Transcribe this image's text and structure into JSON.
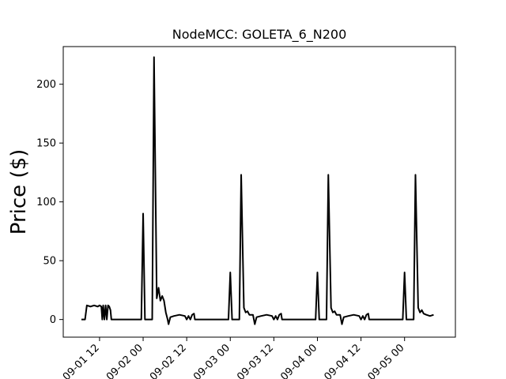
{
  "chart_data": {
    "type": "line",
    "title": "NodeMCC: GOLETA_6_N200",
    "xlabel": "",
    "ylabel": "Price ($)",
    "xlim": [
      "2024-09-01T02:00",
      "2024-09-05T14:00"
    ],
    "ylim": [
      -15,
      232
    ],
    "grid": false,
    "yticks": [
      0,
      50,
      100,
      150,
      200
    ],
    "xticks": [
      {
        "t": "2024-09-01T12:00",
        "label": "09-01 12"
      },
      {
        "t": "2024-09-02T00:00",
        "label": "09-02 00"
      },
      {
        "t": "2024-09-02T12:00",
        "label": "09-02 12"
      },
      {
        "t": "2024-09-03T00:00",
        "label": "09-03 00"
      },
      {
        "t": "2024-09-03T12:00",
        "label": "09-03 12"
      },
      {
        "t": "2024-09-04T00:00",
        "label": "09-04 00"
      },
      {
        "t": "2024-09-04T12:00",
        "label": "09-04 12"
      },
      {
        "t": "2024-09-05T00:00",
        "label": "09-05 00"
      }
    ],
    "series": [
      {
        "name": "",
        "color": "#000000",
        "points": [
          [
            "2024-09-01T07:00",
            0
          ],
          [
            "2024-09-01T08:00",
            0
          ],
          [
            "2024-09-01T08:30",
            12
          ],
          [
            "2024-09-01T09:30",
            11
          ],
          [
            "2024-09-01T10:30",
            12
          ],
          [
            "2024-09-01T11:30",
            11
          ],
          [
            "2024-09-01T12:00",
            12
          ],
          [
            "2024-09-01T12:30",
            11
          ],
          [
            "2024-09-01T12:45",
            0
          ],
          [
            "2024-09-01T13:00",
            12
          ],
          [
            "2024-09-01T13:20",
            0
          ],
          [
            "2024-09-01T13:40",
            12
          ],
          [
            "2024-09-01T14:00",
            0
          ],
          [
            "2024-09-01T14:20",
            12
          ],
          [
            "2024-09-01T14:40",
            11
          ],
          [
            "2024-09-01T15:00",
            8
          ],
          [
            "2024-09-01T15:15",
            0
          ],
          [
            "2024-09-01T23:30",
            0
          ],
          [
            "2024-09-02T00:00",
            90
          ],
          [
            "2024-09-02T00:30",
            0
          ],
          [
            "2024-09-02T02:30",
            0
          ],
          [
            "2024-09-02T03:00",
            223
          ],
          [
            "2024-09-02T03:45",
            18
          ],
          [
            "2024-09-02T04:15",
            27
          ],
          [
            "2024-09-02T04:45",
            16
          ],
          [
            "2024-09-02T05:15",
            20
          ],
          [
            "2024-09-02T05:45",
            16
          ],
          [
            "2024-09-02T06:15",
            6
          ],
          [
            "2024-09-02T06:45",
            0
          ],
          [
            "2024-09-02T07:00",
            -4
          ],
          [
            "2024-09-02T07:30",
            2
          ],
          [
            "2024-09-02T08:30",
            3
          ],
          [
            "2024-09-02T10:00",
            4
          ],
          [
            "2024-09-02T11:30",
            3
          ],
          [
            "2024-09-02T12:00",
            0
          ],
          [
            "2024-09-02T12:30",
            3
          ],
          [
            "2024-09-02T13:00",
            0
          ],
          [
            "2024-09-02T13:30",
            4
          ],
          [
            "2024-09-02T14:00",
            5
          ],
          [
            "2024-09-02T14:15",
            0
          ],
          [
            "2024-09-02T23:30",
            0
          ],
          [
            "2024-09-03T00:00",
            40
          ],
          [
            "2024-09-03T00:30",
            0
          ],
          [
            "2024-09-03T02:30",
            0
          ],
          [
            "2024-09-03T03:00",
            123
          ],
          [
            "2024-09-03T03:45",
            10
          ],
          [
            "2024-09-03T04:15",
            6
          ],
          [
            "2024-09-03T04:45",
            7
          ],
          [
            "2024-09-03T05:15",
            4
          ],
          [
            "2024-09-03T06:15",
            4
          ],
          [
            "2024-09-03T06:45",
            -4
          ],
          [
            "2024-09-03T07:15",
            2
          ],
          [
            "2024-09-03T08:30",
            3
          ],
          [
            "2024-09-03T10:00",
            4
          ],
          [
            "2024-09-03T11:30",
            3
          ],
          [
            "2024-09-03T12:00",
            0
          ],
          [
            "2024-09-03T12:30",
            3
          ],
          [
            "2024-09-03T13:00",
            0
          ],
          [
            "2024-09-03T13:30",
            4
          ],
          [
            "2024-09-03T14:00",
            5
          ],
          [
            "2024-09-03T14:15",
            0
          ],
          [
            "2024-09-03T23:30",
            0
          ],
          [
            "2024-09-04T00:00",
            40
          ],
          [
            "2024-09-04T00:30",
            0
          ],
          [
            "2024-09-04T02:30",
            0
          ],
          [
            "2024-09-04T03:00",
            123
          ],
          [
            "2024-09-04T03:45",
            10
          ],
          [
            "2024-09-04T04:15",
            6
          ],
          [
            "2024-09-04T04:45",
            7
          ],
          [
            "2024-09-04T05:15",
            4
          ],
          [
            "2024-09-04T06:15",
            4
          ],
          [
            "2024-09-04T06:45",
            -4
          ],
          [
            "2024-09-04T07:15",
            2
          ],
          [
            "2024-09-04T08:30",
            3
          ],
          [
            "2024-09-04T10:00",
            4
          ],
          [
            "2024-09-04T11:30",
            3
          ],
          [
            "2024-09-04T12:00",
            0
          ],
          [
            "2024-09-04T12:30",
            3
          ],
          [
            "2024-09-04T13:00",
            0
          ],
          [
            "2024-09-04T13:30",
            4
          ],
          [
            "2024-09-04T14:00",
            5
          ],
          [
            "2024-09-04T14:15",
            0
          ],
          [
            "2024-09-04T23:30",
            0
          ],
          [
            "2024-09-05T00:00",
            40
          ],
          [
            "2024-09-05T00:30",
            0
          ],
          [
            "2024-09-05T02:30",
            0
          ],
          [
            "2024-09-05T03:00",
            123
          ],
          [
            "2024-09-05T03:45",
            10
          ],
          [
            "2024-09-05T04:15",
            6
          ],
          [
            "2024-09-05T04:45",
            8
          ],
          [
            "2024-09-05T05:15",
            5
          ],
          [
            "2024-09-05T06:00",
            4
          ],
          [
            "2024-09-05T07:00",
            3
          ],
          [
            "2024-09-05T08:00",
            4
          ]
        ]
      }
    ]
  }
}
